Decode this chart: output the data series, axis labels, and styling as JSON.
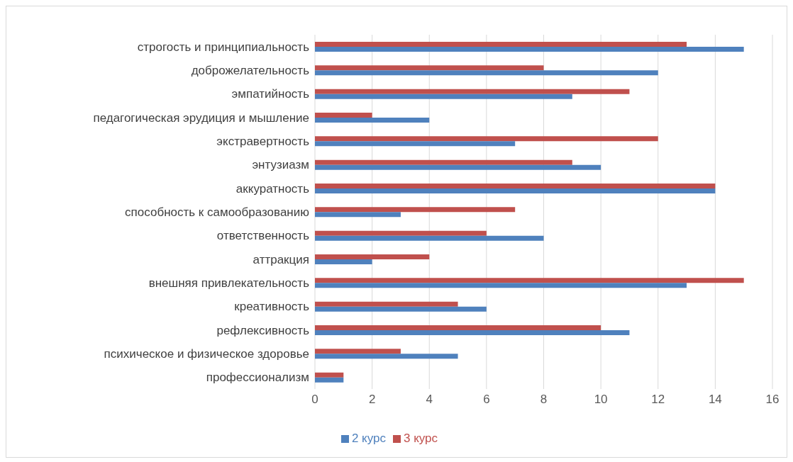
{
  "chart_data": {
    "type": "bar",
    "orientation": "horizontal",
    "categories": [
      "строгость и принципиальность",
      "доброжелательность",
      "эмпатийность",
      "педагогическая эрудиция и мышление",
      "экстравертность",
      "энтузиазм",
      "аккуратность",
      "способность к самообразованию",
      "ответственность",
      "аттракция",
      "внешняя привлекательность",
      "креативность",
      "рефлексивность",
      "психическое и физическое здоровье",
      "профессионализм"
    ],
    "series": [
      {
        "name": "3 курс",
        "color": "#c0504d",
        "values": [
          13,
          8,
          11,
          2,
          12,
          9,
          14,
          7,
          6,
          4,
          15,
          5,
          10,
          3,
          1
        ]
      },
      {
        "name": "2 курс",
        "color": "#4f81bd",
        "values": [
          15,
          12,
          9,
          4,
          7,
          10,
          14,
          3,
          8,
          2,
          13,
          6,
          11,
          5,
          1
        ]
      }
    ],
    "xlim": [
      0,
      16
    ],
    "xticks": [
      0,
      2,
      4,
      6,
      8,
      10,
      12,
      14,
      16
    ],
    "grid": "x",
    "legend": "bottom"
  }
}
